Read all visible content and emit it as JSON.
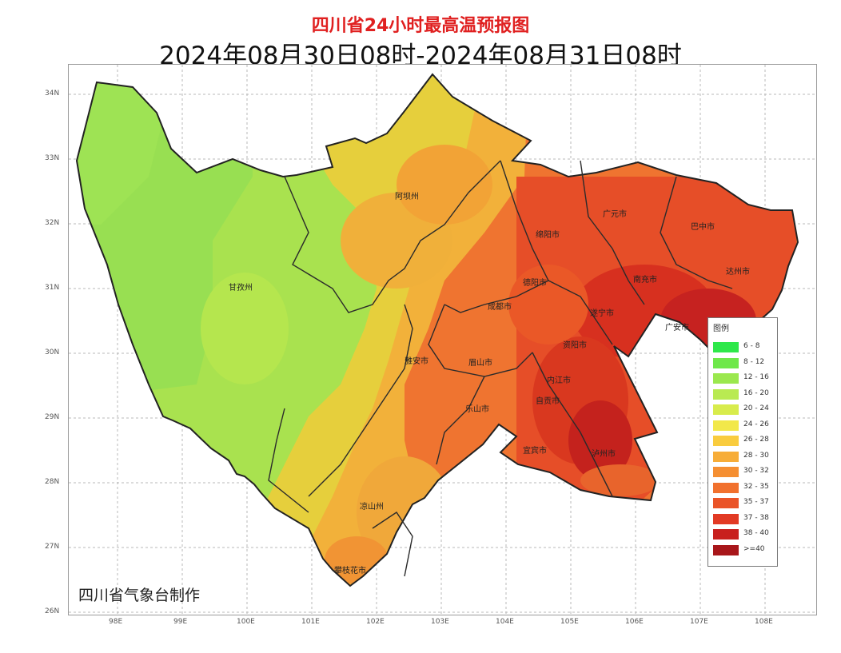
{
  "title": "四川省24小时最高温预报图",
  "subtitle": "2024年08月30日08时-2024年08月31日08时",
  "credit": "四川省气象台制作",
  "axes": {
    "lat_labels": [
      "34N",
      "33N",
      "32N",
      "31N",
      "30N",
      "29N",
      "28N",
      "27N",
      "26N"
    ],
    "lon_labels": [
      "98E",
      "99E",
      "100E",
      "101E",
      "102E",
      "103E",
      "104E",
      "105E",
      "106E",
      "107E",
      "108E"
    ]
  },
  "cities": [
    "阿坝州",
    "甘孜州",
    "广元市",
    "巴中市",
    "达州市",
    "绵阳市",
    "德阳市",
    "南充市",
    "广安市",
    "成都市",
    "遂宁市",
    "雅安市",
    "资阳市",
    "眉山市",
    "内江市",
    "乐山市",
    "自贡市",
    "宜宾市",
    "泸州市",
    "凉山州",
    "攀枝花市"
  ],
  "legend": {
    "title": "图例",
    "items": [
      {
        "label": "6 - 8",
        "color": "#2ee84a"
      },
      {
        "label": "8 - 12",
        "color": "#6ee84a"
      },
      {
        "label": "12 - 16",
        "color": "#9be84e"
      },
      {
        "label": "16 - 20",
        "color": "#b9ea52"
      },
      {
        "label": "20 - 24",
        "color": "#d8ec4c"
      },
      {
        "label": "24 - 26",
        "color": "#f2e84a"
      },
      {
        "label": "26 - 28",
        "color": "#f9cc3e"
      },
      {
        "label": "28 - 30",
        "color": "#f7ad38"
      },
      {
        "label": "30 - 32",
        "color": "#f58f32"
      },
      {
        "label": "32 - 35",
        "color": "#f1712e"
      },
      {
        "label": "35 - 37",
        "color": "#ea5428"
      },
      {
        "label": "37 - 38",
        "color": "#e23a24"
      },
      {
        "label": "38 - 40",
        "color": "#c8201e"
      },
      {
        "label": ">=40",
        "color": "#a8161a"
      }
    ]
  }
}
